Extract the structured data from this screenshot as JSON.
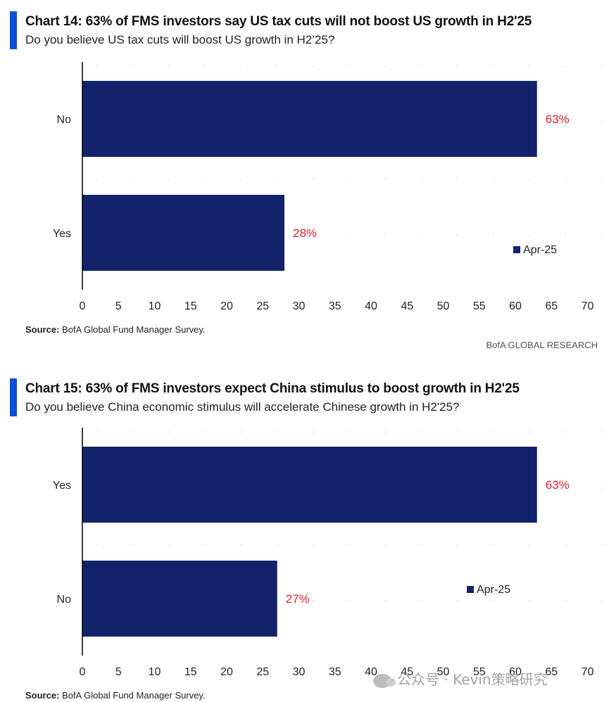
{
  "charts": [
    {
      "title": "Chart 14: 63% of FMS investors say US tax cuts will not boost US growth in H2'25",
      "subtitle": "Do you believe US tax cuts will boost US growth in H2’25?",
      "source_label": "Source:",
      "source_text": " BofA Global Fund Manager Survey.",
      "brand": "BofA GLOBAL RESEARCH"
    },
    {
      "title": "Chart 15: 63% of FMS investors expect China stimulus to boost growth in H2'25",
      "subtitle": "Do you believe China economic stimulus will accelerate Chinese growth in H2'25?",
      "source_label": "Source:",
      "source_text": " BofA Global Fund Manager Survey."
    }
  ],
  "watermark": "公众号 · Kevin策略研究",
  "colors": {
    "bar": "#12236b",
    "label": "#e0202e",
    "accent": "#0a4fd6",
    "axis": "#000000"
  },
  "chart_data": [
    {
      "type": "bar",
      "orientation": "horizontal",
      "categories": [
        "No",
        "Yes"
      ],
      "series": [
        {
          "name": "Apr-25",
          "values": [
            63,
            28
          ]
        }
      ],
      "data_labels": [
        "63%",
        "28%"
      ],
      "xlim": [
        0,
        70
      ],
      "xticks": [
        "0",
        "5",
        "10",
        "15",
        "20",
        "25",
        "30",
        "35",
        "40",
        "45",
        "50",
        "55",
        "60",
        "65",
        "70"
      ],
      "legend": "right"
    },
    {
      "type": "bar",
      "orientation": "horizontal",
      "categories": [
        "Yes",
        "No"
      ],
      "series": [
        {
          "name": "Apr-25",
          "values": [
            63,
            27
          ]
        }
      ],
      "data_labels": [
        "63%",
        "27%"
      ],
      "xlim": [
        0,
        70
      ],
      "xticks": [
        "0",
        "5",
        "10",
        "15",
        "20",
        "25",
        "30",
        "35",
        "40",
        "45",
        "50",
        "55",
        "60",
        "65",
        "70"
      ],
      "legend": "right"
    }
  ]
}
